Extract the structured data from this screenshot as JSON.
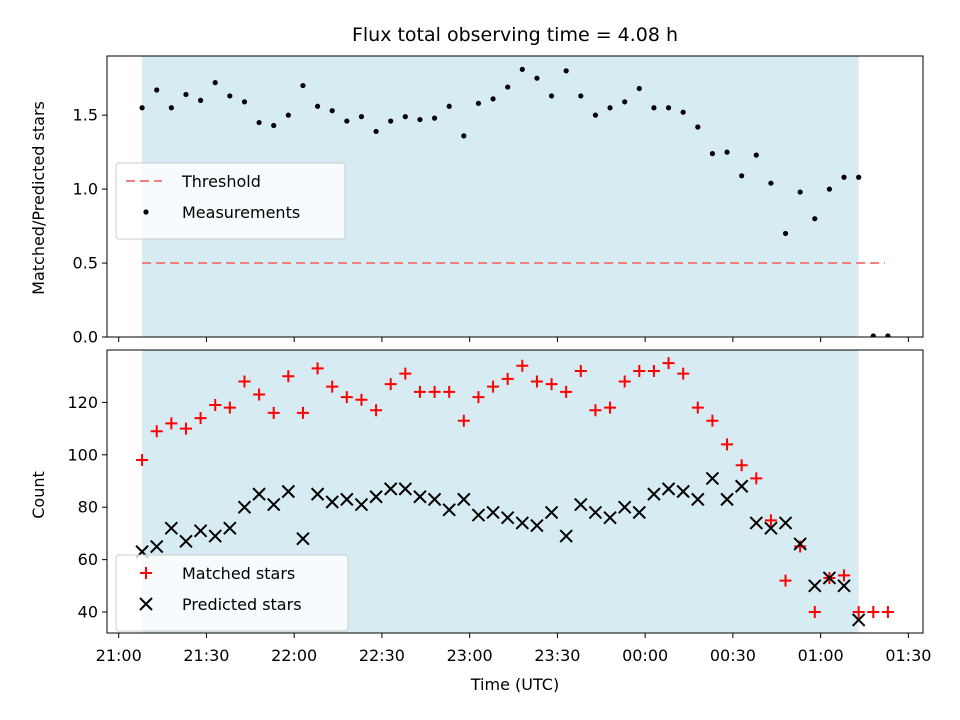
{
  "chart_data": {
    "type": "scatter",
    "title": "Flux total observing time = 4.08 h",
    "xlabel": "Time (UTC)",
    "x_ticks": [
      "21:00",
      "21:30",
      "22:00",
      "22:30",
      "23:00",
      "23:30",
      "00:00",
      "00:30",
      "01:00",
      "01:30"
    ],
    "xlim_minutes": [
      -4,
      275
    ],
    "observing_window_minutes": [
      8,
      253
    ],
    "colors": {
      "band": "#add8e6",
      "threshold": "#f08080",
      "measurements": "#000000",
      "matched": "#ff0000",
      "predicted": "#000000"
    },
    "panels": [
      {
        "ylabel": "Matched/Predicted stars",
        "ylim": [
          0,
          1.9
        ],
        "y_ticks": [
          "0.0",
          "0.5",
          "1.0",
          "1.5"
        ],
        "legend_position": "center-left",
        "threshold": {
          "name": "Threshold",
          "value": 0.5,
          "x_range": [
            8,
            262
          ]
        },
        "series": [
          {
            "name": "Measurements",
            "marker": "dot",
            "x": [
              8,
              13,
              18,
              23,
              28,
              33,
              38,
              43,
              48,
              53,
              58,
              63,
              68,
              73,
              78,
              83,
              88,
              93,
              98,
              103,
              108,
              113,
              118,
              123,
              128,
              133,
              138,
              143,
              148,
              153,
              158,
              163,
              168,
              173,
              178,
              183,
              188,
              193,
              198,
              203,
              208,
              213,
              218,
              223,
              228,
              233,
              238,
              243,
              248,
              253,
              258,
              263
            ],
            "y": [
              1.55,
              1.67,
              1.55,
              1.64,
              1.6,
              1.72,
              1.63,
              1.59,
              1.45,
              1.43,
              1.5,
              1.7,
              1.56,
              1.53,
              1.46,
              1.49,
              1.39,
              1.46,
              1.49,
              1.47,
              1.48,
              1.56,
              1.36,
              1.58,
              1.61,
              1.69,
              1.81,
              1.75,
              1.63,
              1.8,
              1.63,
              1.5,
              1.55,
              1.59,
              1.68,
              1.55,
              1.55,
              1.52,
              1.42,
              1.24,
              1.25,
              1.09,
              1.23,
              1.04,
              0.7,
              0.98,
              0.8,
              1.0,
              1.08,
              1.08,
              0,
              0
            ]
          }
        ]
      },
      {
        "ylabel": "Count",
        "ylim": [
          32,
          140
        ],
        "y_ticks": [
          "40",
          "60",
          "80",
          "100",
          "120"
        ],
        "legend_position": "bottom-left",
        "series": [
          {
            "name": "Matched stars",
            "marker": "plus",
            "x": [
              8,
              13,
              18,
              23,
              28,
              33,
              38,
              43,
              48,
              53,
              58,
              63,
              68,
              73,
              78,
              83,
              88,
              93,
              98,
              103,
              108,
              113,
              118,
              123,
              128,
              133,
              138,
              143,
              148,
              153,
              158,
              163,
              168,
              173,
              178,
              183,
              188,
              193,
              198,
              203,
              208,
              213,
              218,
              223,
              228,
              233,
              238,
              243,
              248,
              253,
              258,
              263
            ],
            "y": [
              98,
              109,
              112,
              110,
              114,
              119,
              118,
              128,
              123,
              116,
              130,
              116,
              133,
              126,
              122,
              121,
              117,
              127,
              131,
              124,
              124,
              124,
              113,
              122,
              126,
              129,
              134,
              128,
              127,
              124,
              132,
              117,
              118,
              128,
              132,
              132,
              135,
              131,
              118,
              113,
              104,
              96,
              91,
              75,
              52,
              65,
              40,
              53,
              54,
              40,
              40,
              40
            ]
          },
          {
            "name": "Predicted stars",
            "marker": "x",
            "x": [
              8,
              13,
              18,
              23,
              28,
              33,
              38,
              43,
              48,
              53,
              58,
              63,
              68,
              73,
              78,
              83,
              88,
              93,
              98,
              103,
              108,
              113,
              118,
              123,
              128,
              133,
              138,
              143,
              148,
              153,
              158,
              163,
              168,
              173,
              178,
              183,
              188,
              193,
              198,
              203,
              208,
              213,
              218,
              223,
              228,
              233,
              238,
              243,
              248,
              253
            ],
            "y": [
              63,
              65,
              72,
              67,
              71,
              69,
              72,
              80,
              85,
              81,
              86,
              68,
              85,
              82,
              83,
              81,
              84,
              87,
              87,
              84,
              83,
              79,
              83,
              77,
              78,
              76,
              74,
              73,
              78,
              69,
              81,
              78,
              76,
              80,
              78,
              85,
              87,
              86,
              83,
              91,
              83,
              88,
              74,
              72,
              74,
              66,
              50,
              53,
              50,
              37
            ]
          }
        ]
      }
    ]
  }
}
